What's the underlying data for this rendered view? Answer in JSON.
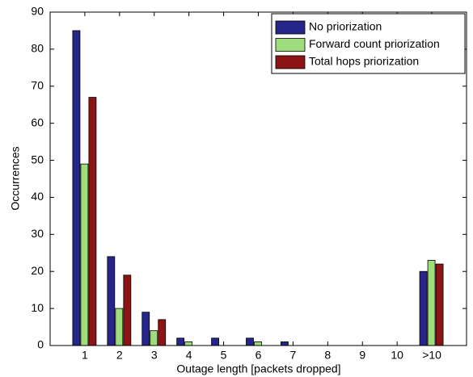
{
  "chart_data": {
    "type": "bar",
    "x_label": "Outage length [packets dropped]",
    "y_label": "Occurrences",
    "categories": [
      "1",
      "2",
      "3",
      "4",
      "5",
      "6",
      "7",
      "8",
      "9",
      "10",
      ">10"
    ],
    "series": [
      {
        "name": "No priorization",
        "color": "#25258a",
        "values": [
          85,
          24,
          9,
          2,
          2,
          2,
          1,
          0,
          0,
          0,
          20
        ]
      },
      {
        "name": "Forward count priorization",
        "color": "#9edc7c",
        "values": [
          49,
          10,
          4,
          1,
          0,
          1,
          0,
          0,
          0,
          0,
          23
        ]
      },
      {
        "name": "Total hops priorization",
        "color": "#8c1414",
        "values": [
          67,
          19,
          7,
          0,
          0,
          0,
          0,
          0,
          0,
          0,
          22
        ]
      }
    ],
    "ylim": [
      0,
      90
    ],
    "yticks": [
      0,
      10,
      20,
      30,
      40,
      50,
      60,
      70,
      80,
      90
    ],
    "legend": "upper right",
    "grid": false
  }
}
